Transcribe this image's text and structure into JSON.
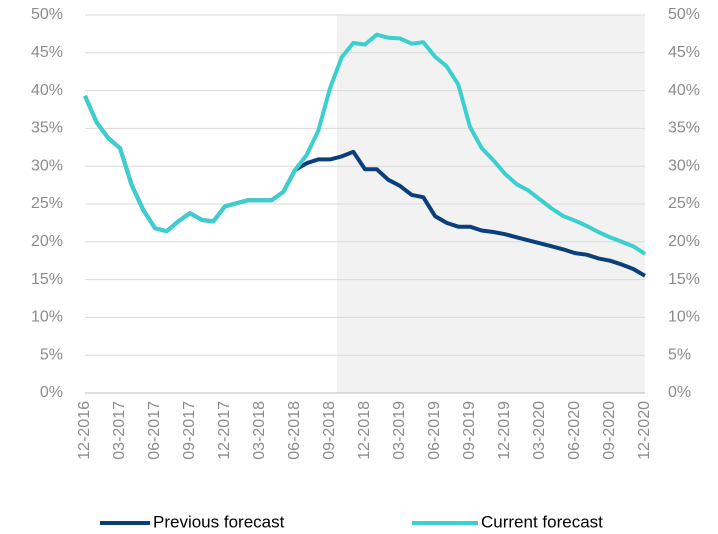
{
  "chart_data": {
    "type": "line",
    "categories": [
      "12-2016",
      null,
      null,
      "03-2017",
      null,
      null,
      "06-2017",
      null,
      null,
      "09-2017",
      null,
      null,
      "12-2017",
      null,
      null,
      "03-2018",
      null,
      null,
      "06-2018",
      null,
      null,
      "09-2018",
      null,
      null,
      "12-2018",
      null,
      null,
      "03-2019",
      null,
      null,
      "06-2019",
      null,
      null,
      "09-2019",
      null,
      null,
      "12-2019",
      null,
      null,
      "03-2020",
      null,
      null,
      "06-2020",
      null,
      null,
      "09-2020",
      null,
      null,
      "12-2020"
    ],
    "series": [
      {
        "name": "Previous forecast",
        "color": "#0b3f7a",
        "values": [
          39.3,
          35.8,
          33.7,
          32.4,
          27.5,
          24.2,
          21.8,
          21.4,
          22.7,
          23.8,
          22.9,
          22.7,
          24.7,
          25.1,
          25.5,
          25.5,
          25.5,
          26.6,
          29.5,
          30.4,
          30.9,
          30.9,
          31.3,
          31.9,
          29.6,
          29.6,
          28.2,
          27.4,
          26.2,
          25.9,
          23.4,
          22.5,
          22.0,
          22.0,
          21.5,
          21.3,
          21.0,
          20.6,
          20.2,
          19.8,
          19.4,
          19.0,
          18.5,
          18.3,
          17.8,
          17.5,
          17.0,
          16.4,
          15.5
        ]
      },
      {
        "name": "Current forecast",
        "color": "#3ccfcf",
        "values": [
          39.3,
          35.8,
          33.7,
          32.4,
          27.5,
          24.2,
          21.8,
          21.4,
          22.7,
          23.8,
          22.9,
          22.7,
          24.7,
          25.1,
          25.5,
          25.5,
          25.5,
          26.6,
          29.5,
          31.5,
          34.7,
          40.3,
          44.4,
          46.3,
          46.1,
          47.4,
          47.0,
          46.9,
          46.2,
          46.4,
          44.5,
          43.2,
          40.8,
          35.2,
          32.4,
          30.8,
          29.0,
          27.6,
          26.8,
          25.6,
          24.4,
          23.4,
          22.8,
          22.1,
          21.3,
          20.6,
          20.0,
          19.4,
          18.4
        ]
      }
    ],
    "ylim": [
      0,
      50
    ],
    "yticks": [
      {
        "value": 0,
        "label": "0%"
      },
      {
        "value": 5,
        "label": "5%"
      },
      {
        "value": 10,
        "label": "10%"
      },
      {
        "value": 15,
        "label": "15%"
      },
      {
        "value": 20,
        "label": "20%"
      },
      {
        "value": 25,
        "label": "25%"
      },
      {
        "value": 30,
        "label": "30%"
      },
      {
        "value": 35,
        "label": "35%"
      },
      {
        "value": 40,
        "label": "40%"
      },
      {
        "value": 45,
        "label": "45%"
      },
      {
        "value": 50,
        "label": "50%"
      }
    ],
    "y2lim": [
      0,
      50
    ],
    "y2ticks": [
      {
        "value": 0,
        "label": "0%"
      },
      {
        "value": 5,
        "label": "5%"
      },
      {
        "value": 10,
        "label": "10%"
      },
      {
        "value": 15,
        "label": "15%"
      },
      {
        "value": 20,
        "label": "20%"
      },
      {
        "value": 25,
        "label": "25%"
      },
      {
        "value": 30,
        "label": "30%"
      },
      {
        "value": 35,
        "label": "35%"
      },
      {
        "value": 40,
        "label": "40%"
      },
      {
        "value": 45,
        "label": "45%"
      },
      {
        "value": 50,
        "label": "50%"
      }
    ],
    "grid": true
  }
}
